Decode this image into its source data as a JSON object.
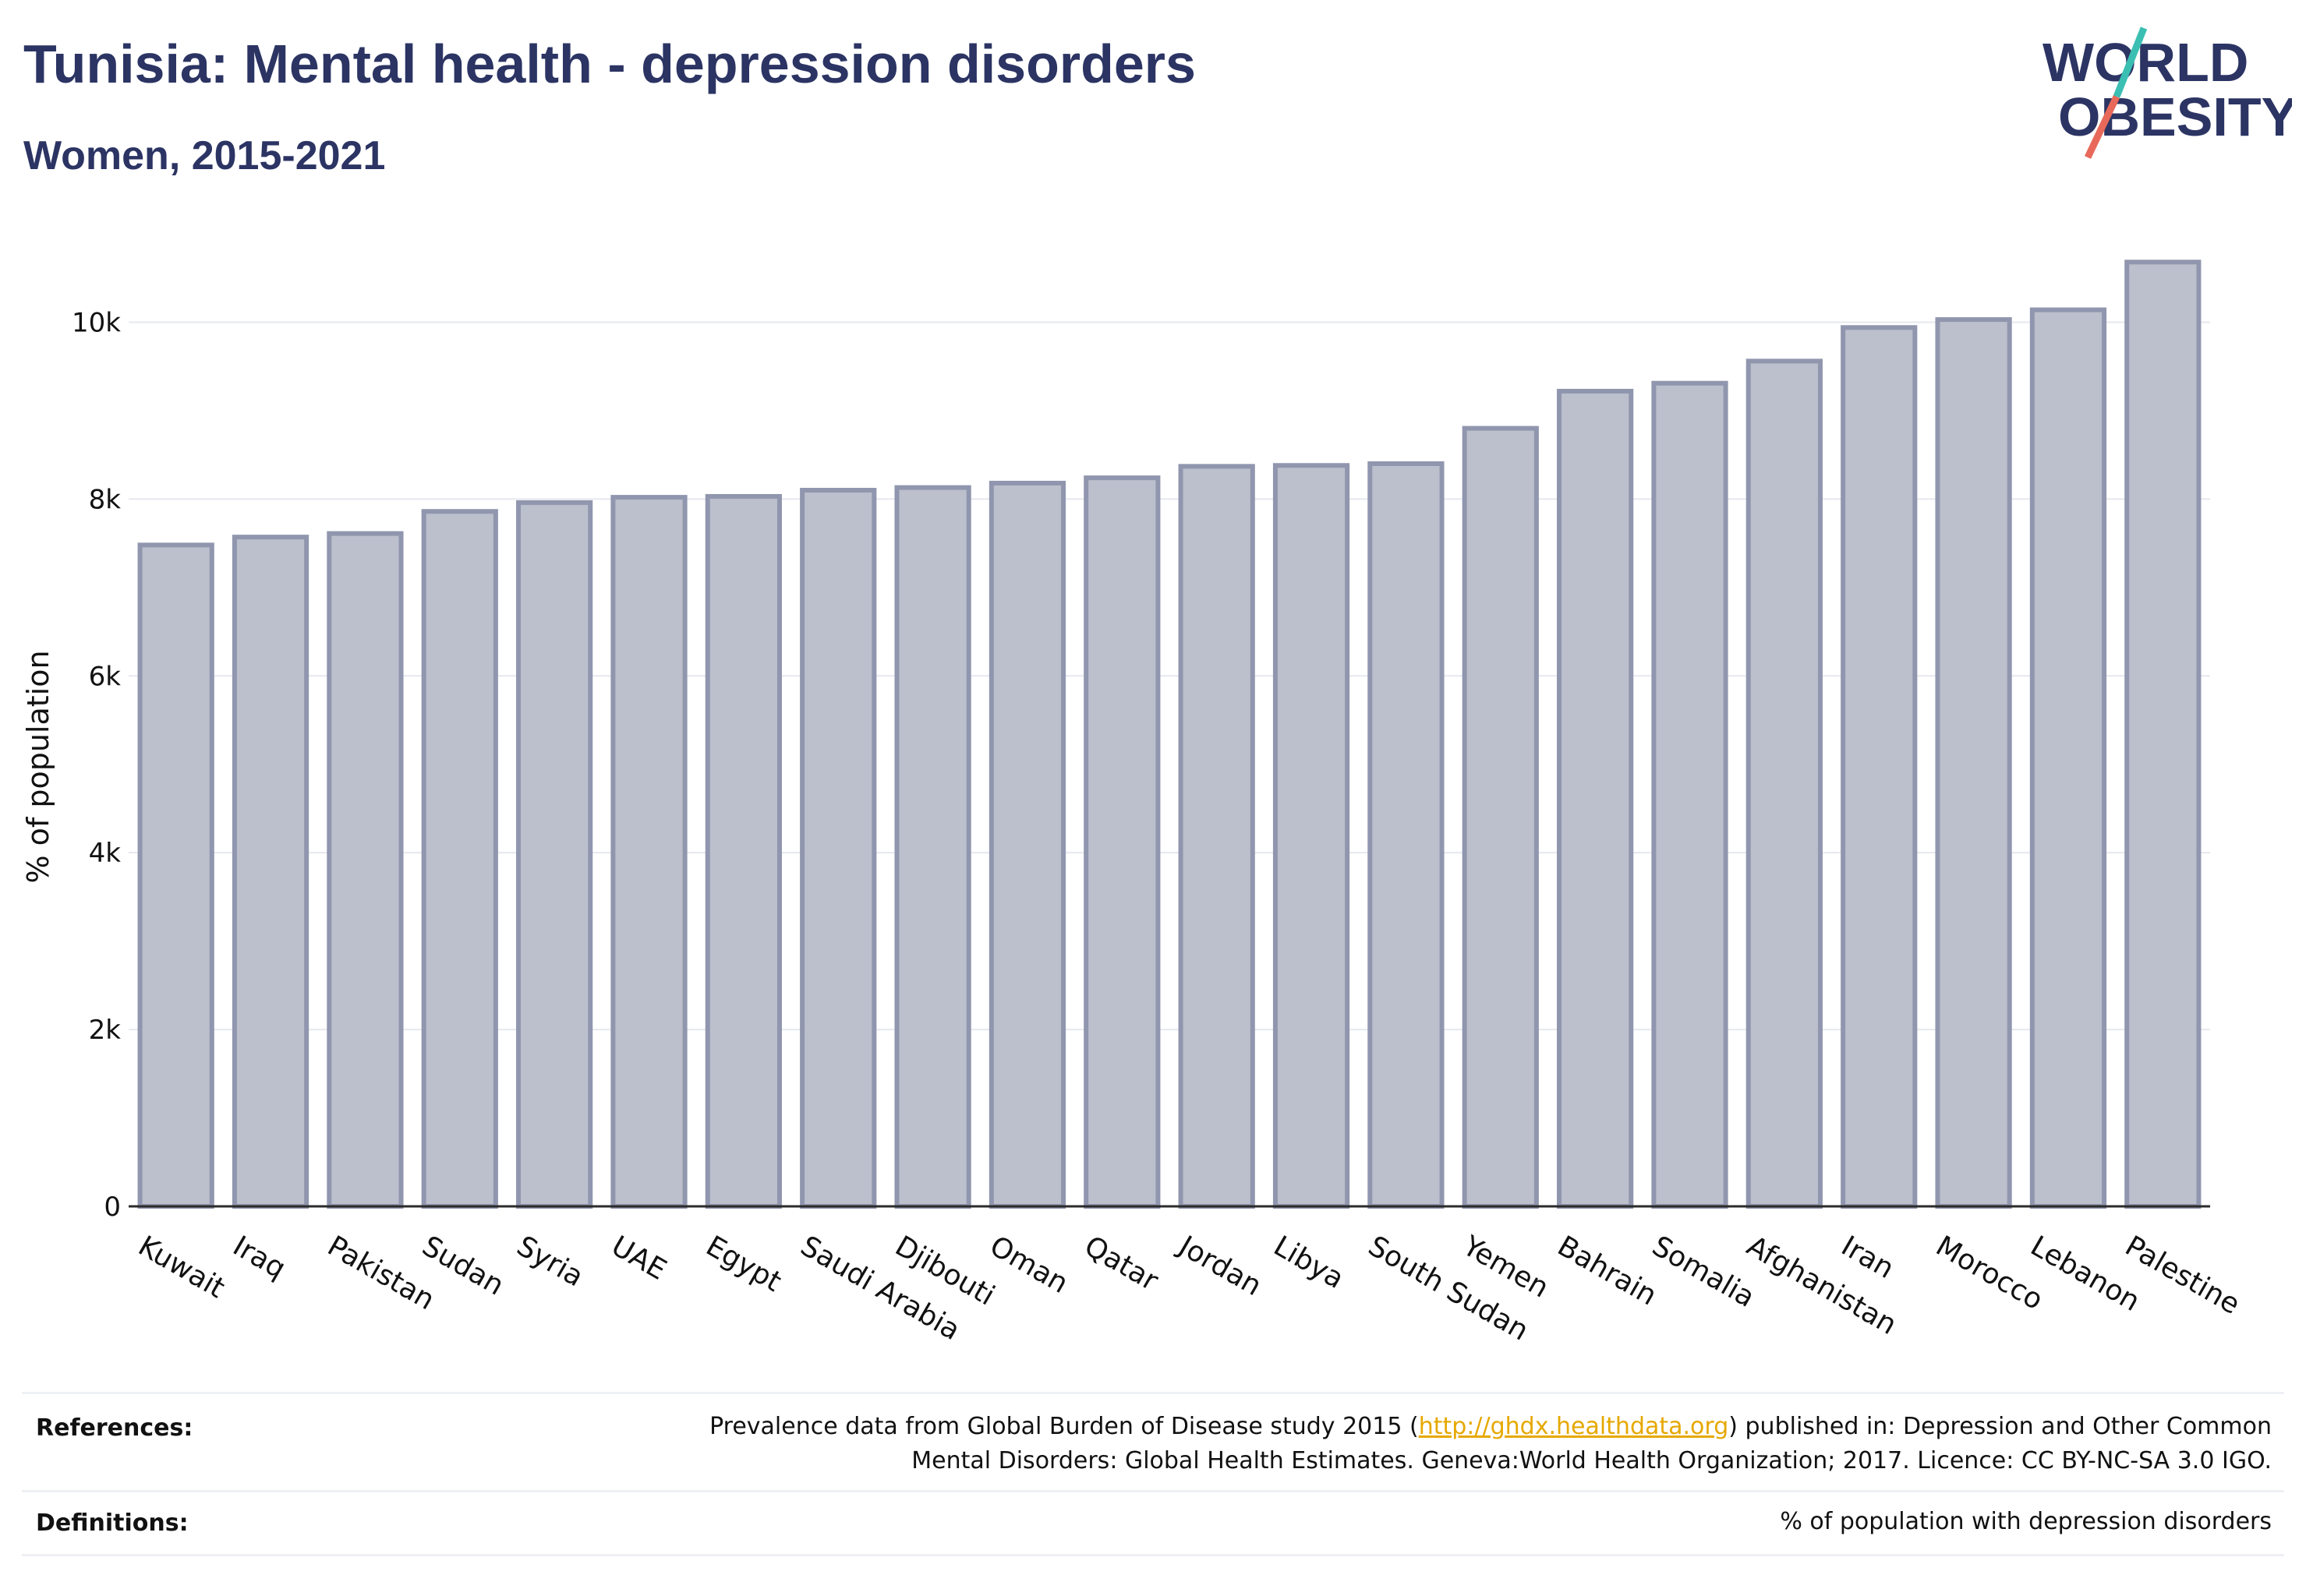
{
  "header": {
    "title": "Tunisia: Mental health - depression disorders",
    "subtitle": "Women, 2015-2021"
  },
  "logo": {
    "line1": "WORLD",
    "line2": "OBESITY",
    "colors": {
      "text": "#2b3463",
      "slash_top": "#3bbfb3",
      "slash_bottom": "#e8695a"
    }
  },
  "chart_data": {
    "type": "bar",
    "title": "Tunisia: Mental health - depression disorders",
    "subtitle": "Women, 2015-2021",
    "xlabel": "",
    "ylabel": "% of population",
    "ylim": [
      0,
      11000
    ],
    "yticks": [
      0,
      2000,
      4000,
      6000,
      8000,
      10000
    ],
    "ytick_labels": [
      "0",
      "2k",
      "4k",
      "6k",
      "8k",
      "10k"
    ],
    "grid": true,
    "categories": [
      "Kuwait",
      "Iraq",
      "Pakistan",
      "Sudan",
      "Syria",
      "UAE",
      "Egypt",
      "Saudi Arabia",
      "Djibouti",
      "Oman",
      "Qatar",
      "Jordan",
      "Libya",
      "South Sudan",
      "Yemen",
      "Bahrain",
      "Somalia",
      "Afghanistan",
      "Iran",
      "Morocco",
      "Lebanon",
      "Palestine"
    ],
    "values": [
      7480,
      7570,
      7610,
      7860,
      7960,
      8020,
      8030,
      8100,
      8130,
      8180,
      8240,
      8370,
      8380,
      8400,
      8800,
      9220,
      9310,
      9560,
      9940,
      10030,
      10140,
      10680
    ],
    "colors": {
      "bar_fill": "#bcbfcc",
      "bar_stroke": "#9096ae",
      "grid": "#e6e8ef",
      "axis": "#2b2b2b"
    }
  },
  "footer": {
    "references_label": "References:",
    "references_text_1": "Prevalence data from Global Burden of Disease study 2015 (",
    "references_link": "http://ghdx.healthdata.org",
    "references_text_2": ") published in: Depression and Other Common",
    "references_text_3": "Mental Disorders: Global Health Estimates. Geneva:World Health Organization; 2017. Licence: CC BY-NC-SA 3.0 IGO.",
    "definitions_label": "Definitions:",
    "definitions_text": "% of population with depression disorders"
  }
}
